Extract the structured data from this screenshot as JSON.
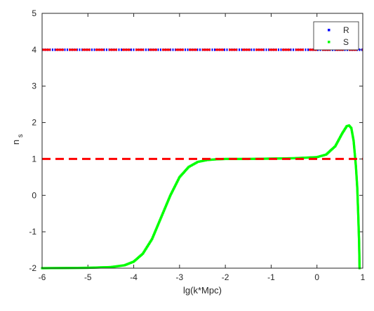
{
  "chart_data": {
    "type": "scatter",
    "xlabel": "lg(k*Mpc)",
    "ylabel_main": "n",
    "ylabel_sub": "s",
    "xlim": [
      -6,
      1
    ],
    "ylim": [
      -2,
      5
    ],
    "xticks": [
      "-6",
      "-5",
      "-4",
      "-3",
      "-2",
      "-1",
      "0",
      "1"
    ],
    "yticks": [
      "-2",
      "-1",
      "0",
      "1",
      "2",
      "3",
      "4",
      "5"
    ],
    "grid": false,
    "legend_position": "top-right",
    "series": [
      {
        "name": "R",
        "color": "#0000ff",
        "style": "dotted-dense",
        "x": [
          -6,
          1
        ],
        "y": [
          4,
          4
        ]
      },
      {
        "name": "S",
        "color": "#00ff00",
        "style": "dotted-dense",
        "x": [
          -6,
          -5,
          -4.5,
          -4.2,
          -4,
          -3.8,
          -3.6,
          -3.4,
          -3.2,
          -3,
          -2.8,
          -2.6,
          -2.4,
          -2.2,
          -2,
          -1.5,
          -1,
          -0.5,
          0,
          0.2,
          0.4,
          0.55,
          0.65,
          0.7,
          0.75,
          0.8,
          0.85,
          0.88,
          0.9,
          0.92,
          0.93
        ],
        "y": [
          -2,
          -1.99,
          -1.97,
          -1.92,
          -1.82,
          -1.6,
          -1.2,
          -0.6,
          0,
          0.5,
          0.78,
          0.92,
          0.97,
          0.99,
          1.0,
          1.0,
          1.01,
          1.02,
          1.05,
          1.12,
          1.35,
          1.7,
          1.9,
          1.92,
          1.85,
          1.5,
          0.8,
          0.2,
          -0.5,
          -1.3,
          -2.0
        ]
      }
    ],
    "reference_lines": [
      {
        "y": 4,
        "color": "#ff0000",
        "style": "dashed"
      },
      {
        "y": 1,
        "color": "#ff0000",
        "style": "dashed"
      }
    ]
  }
}
